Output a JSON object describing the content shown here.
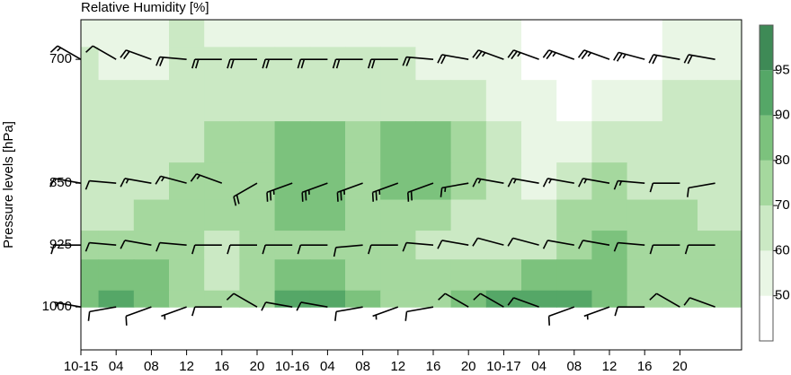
{
  "chart_data": {
    "type": "contour",
    "title": "Relative Humidity [%]",
    "y_label": "Pressure levels [hPa]",
    "xlim": [
      0,
      75
    ],
    "xticks": [
      {
        "value": 0,
        "label": "10-15"
      },
      {
        "value": 4,
        "label": "04"
      },
      {
        "value": 8,
        "label": "08"
      },
      {
        "value": 12,
        "label": "12"
      },
      {
        "value": 16,
        "label": "16"
      },
      {
        "value": 20,
        "label": "20"
      },
      {
        "value": 24,
        "label": "10-16"
      },
      {
        "value": 28,
        "label": "04"
      },
      {
        "value": 32,
        "label": "08"
      },
      {
        "value": 36,
        "label": "12"
      },
      {
        "value": 40,
        "label": "16"
      },
      {
        "value": 44,
        "label": "20"
      },
      {
        "value": 48,
        "label": "10-17"
      },
      {
        "value": 52,
        "label": "04"
      },
      {
        "value": 56,
        "label": "08"
      },
      {
        "value": 60,
        "label": "12"
      },
      {
        "value": 64,
        "label": "16"
      },
      {
        "value": 68,
        "label": "20"
      }
    ],
    "ylim": [
      1052,
      652
    ],
    "yticks": [
      700,
      850,
      925,
      1000
    ],
    "levels": [
      40,
      50,
      60,
      70,
      80,
      90,
      95,
      100
    ],
    "colors": [
      "#ffffff",
      "#e9f6e5",
      "#cbe9c4",
      "#a5d89e",
      "#7cc27d",
      "#55a767",
      "#3e8a56"
    ],
    "colorbar_ticks": [
      50,
      60,
      70,
      80,
      90,
      95
    ],
    "rh": {
      "times": [
        0,
        4,
        8,
        12,
        16,
        20,
        24,
        28,
        32,
        36,
        40,
        44,
        48,
        52,
        56,
        60,
        64,
        68,
        72
      ],
      "pressure": [
        670,
        700,
        750,
        800,
        850,
        890,
        925,
        960,
        1000
      ],
      "values": [
        [
          58,
          58,
          58,
          62,
          58,
          58,
          58,
          58,
          58,
          58,
          58,
          55,
          55,
          45,
          45,
          45,
          48,
          55,
          55
        ],
        [
          60,
          58,
          58,
          60,
          60,
          60,
          60,
          60,
          60,
          60,
          58,
          55,
          55,
          45,
          45,
          45,
          45,
          52,
          55
        ],
        [
          60,
          62,
          62,
          65,
          65,
          65,
          65,
          65,
          65,
          65,
          65,
          60,
          58,
          52,
          48,
          52,
          58,
          60,
          60
        ],
        [
          60,
          62,
          65,
          68,
          72,
          75,
          82,
          82,
          75,
          82,
          82,
          75,
          62,
          55,
          58,
          65,
          65,
          62,
          60
        ],
        [
          62,
          60,
          62,
          70,
          72,
          75,
          82,
          82,
          75,
          82,
          82,
          75,
          65,
          55,
          65,
          72,
          68,
          62,
          60
        ],
        [
          65,
          68,
          72,
          72,
          70,
          75,
          82,
          82,
          75,
          78,
          72,
          65,
          60,
          62,
          70,
          78,
          72,
          70,
          65
        ],
        [
          72,
          75,
          78,
          75,
          62,
          70,
          72,
          72,
          72,
          70,
          68,
          68,
          65,
          68,
          75,
          82,
          75,
          70,
          70
        ],
        [
          85,
          88,
          85,
          78,
          65,
          75,
          82,
          80,
          75,
          72,
          72,
          75,
          78,
          82,
          82,
          82,
          75,
          72,
          70
        ],
        [
          88,
          92,
          88,
          78,
          70,
          75,
          92,
          92,
          80,
          75,
          72,
          82,
          90,
          92,
          92,
          85,
          75,
          70,
          70
        ]
      ]
    },
    "wind": {
      "times": [
        0,
        4,
        8,
        12,
        16,
        20,
        24,
        28,
        32,
        36,
        40,
        44,
        48,
        52,
        56,
        60,
        64,
        68,
        72
      ],
      "pressure": [
        700,
        850,
        925,
        1000
      ],
      "direction": [
        [
          300,
          300,
          290,
          275,
          270,
          270,
          270,
          270,
          270,
          270,
          275,
          280,
          290,
          290,
          290,
          290,
          285,
          280,
          280
        ],
        [
          280,
          275,
          280,
          285,
          290,
          240,
          250,
          250,
          250,
          250,
          250,
          260,
          280,
          280,
          280,
          280,
          275,
          270,
          260
        ],
        [
          270,
          275,
          280,
          275,
          270,
          270,
          270,
          270,
          265,
          270,
          275,
          280,
          285,
          285,
          280,
          280,
          275,
          270,
          270
        ],
        [
          280,
          260,
          250,
          250,
          270,
          300,
          280,
          280,
          260,
          250,
          260,
          300,
          300,
          290,
          250,
          250,
          270,
          300,
          290
        ]
      ],
      "speed": [
        [
          15,
          10,
          20,
          20,
          20,
          20,
          20,
          20,
          20,
          20,
          20,
          20,
          25,
          25,
          25,
          25,
          25,
          20,
          20
        ],
        [
          10,
          10,
          15,
          15,
          15,
          20,
          25,
          25,
          25,
          25,
          20,
          15,
          15,
          15,
          15,
          15,
          15,
          10,
          10
        ],
        [
          10,
          10,
          10,
          10,
          10,
          10,
          10,
          10,
          10,
          10,
          10,
          10,
          10,
          10,
          10,
          10,
          10,
          10,
          10
        ],
        [
          5,
          10,
          10,
          5,
          10,
          10,
          10,
          10,
          10,
          5,
          10,
          10,
          10,
          10,
          10,
          5,
          10,
          10,
          10
        ]
      ]
    }
  }
}
